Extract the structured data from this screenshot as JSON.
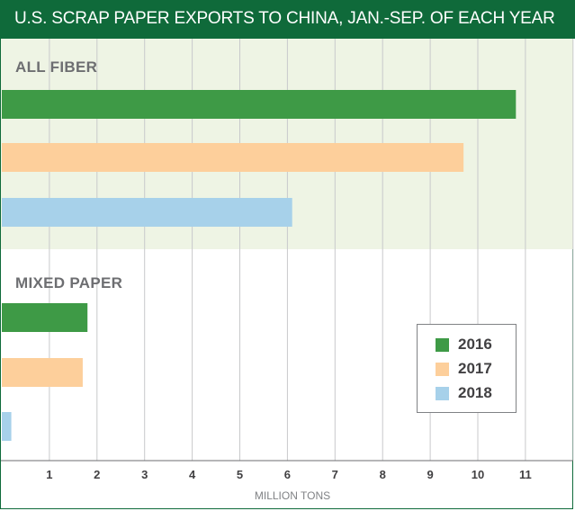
{
  "title": "U.S. SCRAP PAPER EXPORTS TO CHINA, JAN.-SEP. OF EACH YEAR",
  "colors": {
    "header_bg": "#0f6a3a",
    "group_highlight_bg": "#eef4e4",
    "grid": "#c8c9cb",
    "2016": "#3e9a46",
    "2017": "#fdcf9b",
    "2018": "#a7d1ea"
  },
  "chart_data": {
    "type": "bar",
    "orientation": "horizontal",
    "categories": [
      "ALL FIBER",
      "MIXED PAPER"
    ],
    "series": [
      {
        "name": "2016",
        "values": [
          10.8,
          1.8
        ]
      },
      {
        "name": "2017",
        "values": [
          9.7,
          1.7
        ]
      },
      {
        "name": "2018",
        "values": [
          6.1,
          0.2
        ]
      }
    ],
    "xlabel": "MILLION TONS",
    "xlim": [
      0,
      12
    ],
    "xticks": [
      "1",
      "2",
      "3",
      "4",
      "5",
      "6",
      "7",
      "8",
      "9",
      "10",
      "11"
    ],
    "grid": true,
    "legend_position": "bottom-right"
  }
}
